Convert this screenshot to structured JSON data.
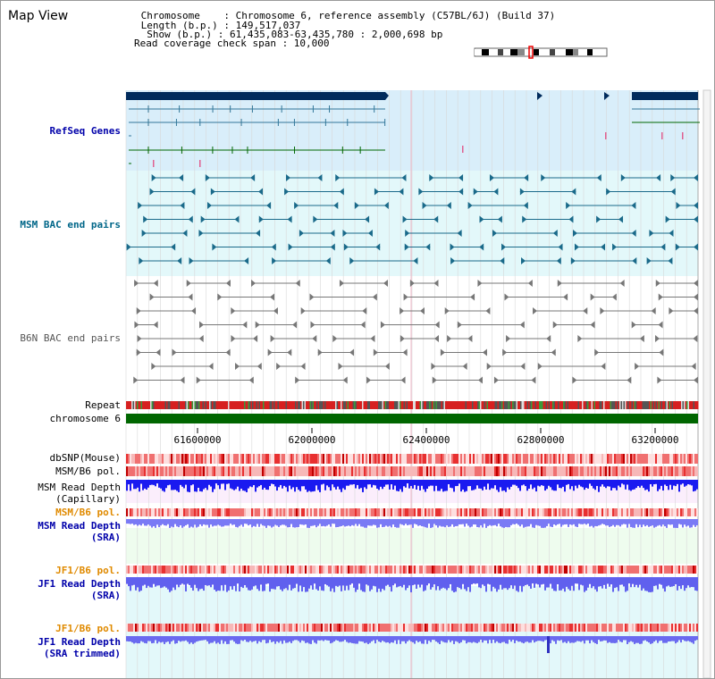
{
  "header": {
    "title": "Map View",
    "info_lines": [
      " Chromosome    : Chromosome 6, reference assembly (C57BL/6J) (Build 37)",
      " Length (b.p.) : 149,517,037",
      "  Show (b.p.) : 61,435,083-63,435,780 : 2,000,698 bp",
      "Read coverage check span : 10,000"
    ]
  },
  "tracks": {
    "refseq": "RefSeq Genes",
    "msm_bac": "MSM BAC end pairs",
    "b6n_bac": "B6N BAC end pairs",
    "repeat": "Repeat",
    "chromosome": "chromosome 6",
    "dbsnp": "dbSNP(Mouse)",
    "msm_b6_pol_1": "MSM/B6 pol.",
    "msm_read_depth_cap": "MSM Read Depth\n(Capillary)",
    "msm_b6_pol_2": "MSM/B6 pol.",
    "msm_read_depth_sra": "MSM Read Depth\n(SRA)",
    "jf1_b6_pol_1": "JF1/B6 pol.",
    "jf1_read_depth_sra": "JF1 Read Depth\n(SRA)",
    "jf1_b6_pol_2": "JF1/B6 pol.",
    "jf1_read_depth_trim": "JF1 Read Depth\n(SRA trimmed)"
  },
  "axis": {
    "ticks": [
      "61600000",
      "62000000",
      "62400000",
      "62800000",
      "63200000"
    ]
  },
  "colors": {
    "gene_dark": "#002b5c",
    "refseq_bg": "#d9eefa",
    "msm_bg": "#e3f8fa",
    "repeat_red": "#d62020",
    "chrom_green": "#006600",
    "depth_blue": "#1a1af0",
    "depth_light_blue": "#7a7af5",
    "pol_red": "#e83030"
  }
}
